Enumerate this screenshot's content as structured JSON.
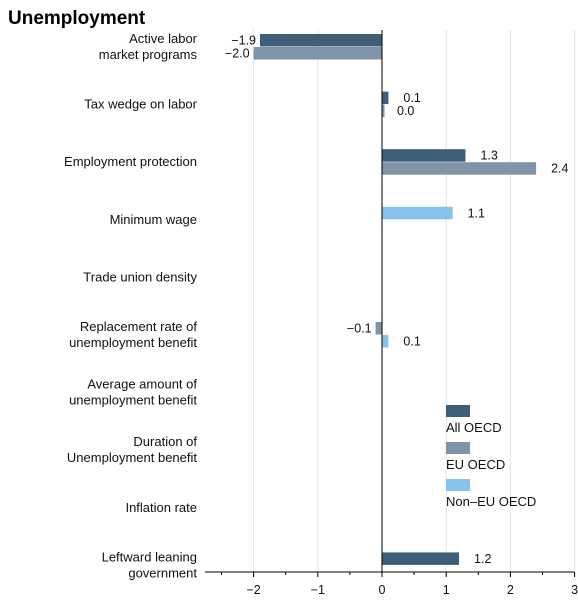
{
  "chart_data": {
    "type": "bar",
    "orientation": "horizontal",
    "title": "Unemployment",
    "categories": [
      [
        "Active labor",
        "market programs"
      ],
      [
        "Tax wedge on labor"
      ],
      [
        "Employment protection"
      ],
      [
        "Minimum wage"
      ],
      [
        "Trade union density"
      ],
      [
        "Replacement rate of",
        "unemployment benefit"
      ],
      [
        "Average amount of",
        "unemployment benefit"
      ],
      [
        "Duration of",
        "Unemployment benefit"
      ],
      [
        "Inflation rate"
      ],
      [
        "Leftward leaning",
        "government"
      ]
    ],
    "series": [
      {
        "name": "All OECD",
        "color": "#3e5f7a",
        "values": [
          -1.9,
          0.1,
          1.3,
          null,
          null,
          null,
          null,
          null,
          null,
          1.2
        ],
        "labels": [
          "−1.9",
          "0.1",
          "1.3",
          null,
          null,
          null,
          null,
          null,
          null,
          "1.2"
        ]
      },
      {
        "name": "EU OECD",
        "color": "#7f93a9",
        "values": [
          -2.0,
          0.0,
          2.4,
          null,
          null,
          -0.1,
          null,
          null,
          null,
          null
        ],
        "labels": [
          "−2.0",
          "0.0",
          "2.4",
          null,
          null,
          "−0.1",
          null,
          null,
          null,
          null
        ]
      },
      {
        "name": "Non–EU OECD",
        "color": "#86c3ea",
        "values": [
          null,
          null,
          null,
          1.1,
          null,
          0.1,
          null,
          null,
          null,
          null
        ],
        "labels": [
          null,
          null,
          null,
          "1.1",
          null,
          "0.1",
          null,
          null,
          null,
          null
        ]
      }
    ],
    "xlim": [
      -2.75,
      3
    ],
    "xticks": [
      -2,
      -1,
      0,
      1,
      2,
      3
    ],
    "xtick_labels": [
      "−2",
      "−1",
      "0",
      "1",
      "2",
      "3"
    ],
    "grid": "vertical",
    "legend_position": "lower-right"
  }
}
